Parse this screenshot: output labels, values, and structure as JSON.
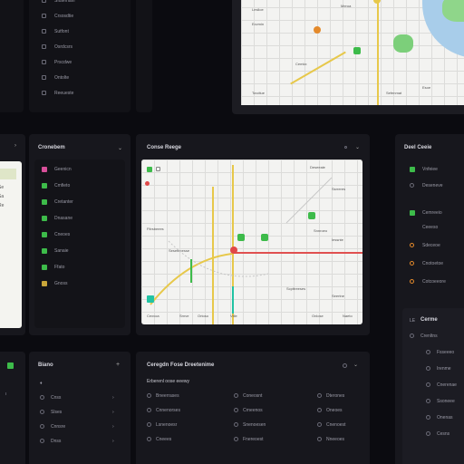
{
  "top_left_panel": {
    "items": [
      "Sfdtemain",
      "Crsosdtie",
      "Sutfont",
      "Osrdcsrs",
      "Prscdwe",
      "Ontolte",
      "Reeueste"
    ]
  },
  "top_map": {
    "labels": [
      "Leslloe",
      "Ecvmin",
      "Cemkx",
      "Meroa",
      "Tovdtue",
      "Sefenmat",
      "Esoe"
    ]
  },
  "left_mid_panel": {
    "title": "Cronebem",
    "items": [
      "Geenicn",
      "Cmfieto",
      "Cretanter",
      "Dnasane",
      "Cneoes",
      "Sanaie",
      "Ffato",
      "Gnoss"
    ]
  },
  "center_panel": {
    "title": "Conse Reege",
    "map_labels": {
      "top_right": "Deseeaie",
      "side1": "Ssrreres",
      "side2": "Snnroeo",
      "side3": "Iessnte",
      "left1": "Fitrsbeees",
      "left2": "Sesettrcesse",
      "mid": "Scpttreeses",
      "bottom_right": "Seertne",
      "footer1": "Cexvoa",
      "footer2": "Srnve",
      "footer3": "Ortoso",
      "footer4": "Vtlie",
      "footer5": "Onlose",
      "footer6": "Naeto"
    }
  },
  "right_panel": {
    "title": "Deel Ceeie",
    "items": [
      "Vnfeiee",
      "Deseneve",
      "Cemreeio",
      "Ceeeso",
      "Sdeceoe",
      "Cnotoetoe",
      "Cotcoeeore"
    ],
    "section_title": "Cerme",
    "sub_items": [
      "Crenltns",
      "Fsseeeo",
      "Irenme",
      "Cnerenae",
      "Ssoneee",
      "Onenas",
      "Cesns"
    ]
  },
  "bottom_left_panel": {
    "title": "Biano",
    "items": [
      "Cnss",
      "Slses",
      "Cnnsre",
      "Dnss"
    ]
  },
  "bottom_center_panel": {
    "title": "Ceregdn Fose Dreetenime",
    "subtitle": "Erberenl oose eeewy",
    "rows": [
      [
        "Bneerrases",
        "Coneosnt",
        "Dterones"
      ],
      [
        "Cnnenorses",
        "Crneenos",
        "Oneoes"
      ],
      [
        "Lsnenoesr",
        "Snenoesen",
        "Cnenoest"
      ],
      [
        "Cneees",
        "Fnereoest",
        "Nneeoes"
      ]
    ]
  },
  "left_edge_panel": {
    "sizes": [
      "Se",
      "Sa",
      "Re"
    ]
  }
}
